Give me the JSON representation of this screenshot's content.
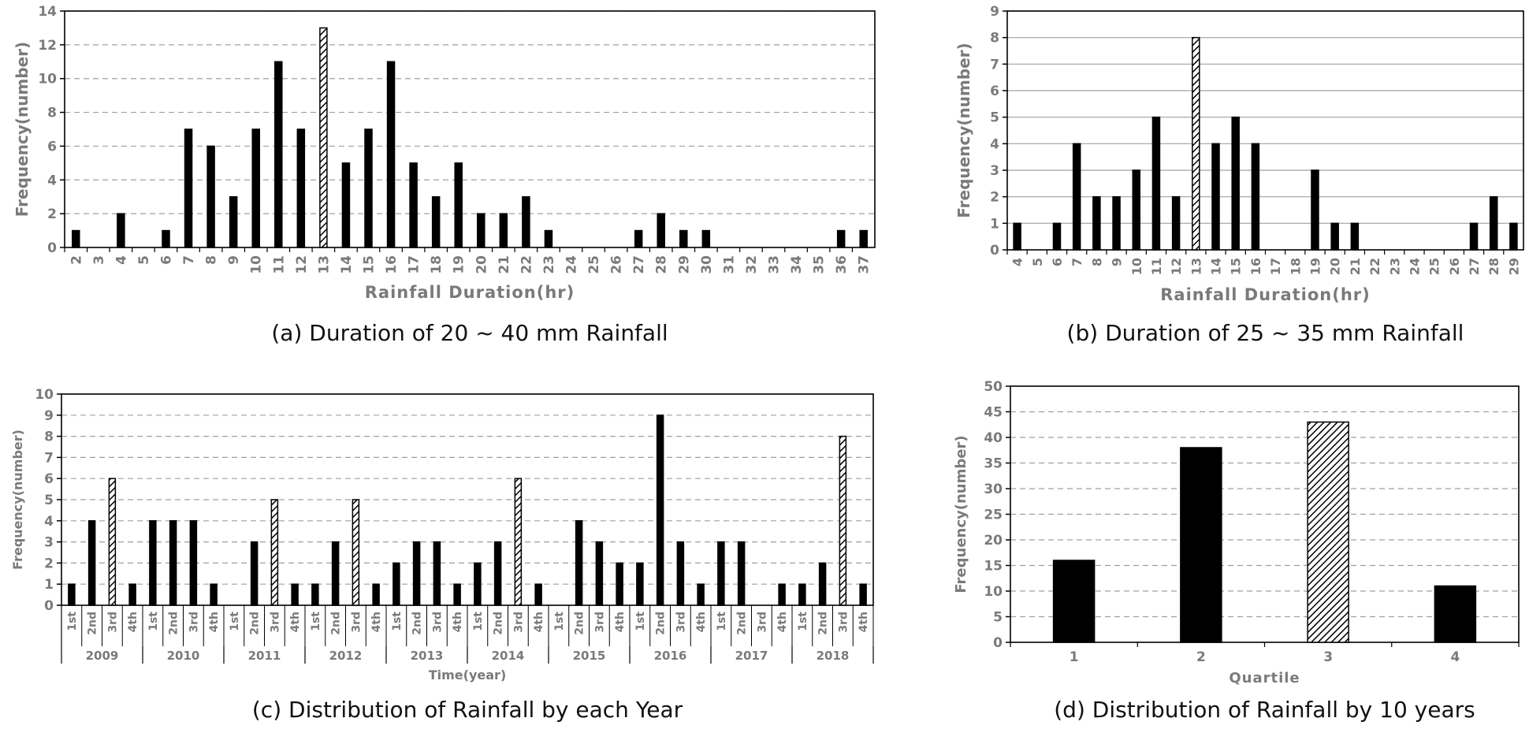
{
  "colors": {
    "bar": "#000000",
    "highlight_fill": "#ffffff",
    "grid": "#a0a0a0",
    "axis": "#000000",
    "text": "#7a7a7a"
  },
  "chart_data": [
    {
      "id": "a",
      "type": "bar",
      "caption": "(a) Duration of 20 ~ 40 mm Rainfall",
      "xlabel": "Rainfall Duration(hr)",
      "ylabel": "Frequency(number)",
      "ylim": [
        0,
        14
      ],
      "yticks": [
        0,
        2,
        4,
        6,
        8,
        10,
        12,
        14
      ],
      "grid": "dashed horizontal",
      "categories": [
        "2",
        "3",
        "4",
        "5",
        "6",
        "7",
        "8",
        "9",
        "10",
        "11",
        "12",
        "13",
        "14",
        "15",
        "16",
        "17",
        "18",
        "19",
        "20",
        "21",
        "22",
        "23",
        "24",
        "25",
        "26",
        "27",
        "28",
        "29",
        "30",
        "31",
        "32",
        "33",
        "34",
        "35",
        "36",
        "37"
      ],
      "values": [
        1,
        0,
        2,
        0,
        1,
        7,
        6,
        3,
        7,
        11,
        7,
        13,
        5,
        7,
        11,
        5,
        3,
        5,
        2,
        2,
        3,
        1,
        0,
        0,
        0,
        1,
        2,
        1,
        1,
        0,
        0,
        0,
        0,
        0,
        1,
        1
      ],
      "highlight": [
        "13"
      ]
    },
    {
      "id": "b",
      "type": "bar",
      "caption": "(b) Duration of 25 ~ 35 mm Rainfall",
      "xlabel": "Rainfall Duration(hr)",
      "ylabel": "Frequency(number)",
      "ylim": [
        0,
        9
      ],
      "yticks": [
        0,
        1,
        2,
        3,
        4,
        5,
        6,
        7,
        8,
        9
      ],
      "grid": "solid horizontal",
      "categories": [
        "4",
        "5",
        "6",
        "7",
        "8",
        "9",
        "10",
        "11",
        "12",
        "13",
        "14",
        "15",
        "16",
        "17",
        "18",
        "19",
        "20",
        "21",
        "22",
        "23",
        "24",
        "25",
        "26",
        "27",
        "28",
        "29"
      ],
      "values": [
        1,
        0,
        1,
        4,
        2,
        2,
        3,
        5,
        2,
        8,
        4,
        5,
        4,
        0,
        0,
        3,
        1,
        1,
        0,
        0,
        0,
        0,
        0,
        1,
        2,
        1
      ],
      "highlight": [
        "13"
      ]
    },
    {
      "id": "c",
      "type": "bar",
      "caption": "(c) Distribution of Rainfall by each Year",
      "xlabel": "Time(year)",
      "ylabel": "Frequency(number)",
      "ylim": [
        0,
        10
      ],
      "yticks": [
        0,
        1,
        2,
        3,
        4,
        5,
        6,
        7,
        8,
        9,
        10
      ],
      "grid": "dashed horizontal",
      "quarters": [
        "1st",
        "2nd",
        "3rd",
        "4th"
      ],
      "groups": [
        {
          "year": "2009",
          "values": [
            1,
            4,
            6,
            1
          ],
          "highlight": 2
        },
        {
          "year": "2010",
          "values": [
            4,
            4,
            4,
            1
          ],
          "highlight": -1
        },
        {
          "year": "2011",
          "values": [
            0,
            3,
            5,
            1
          ],
          "highlight": 2
        },
        {
          "year": "2012",
          "values": [
            1,
            3,
            5,
            1
          ],
          "highlight": 2
        },
        {
          "year": "2013",
          "values": [
            2,
            3,
            3,
            1
          ],
          "highlight": -1
        },
        {
          "year": "2014",
          "values": [
            2,
            3,
            6,
            1
          ],
          "highlight": 2
        },
        {
          "year": "2015",
          "values": [
            0,
            4,
            3,
            2
          ],
          "highlight": -1
        },
        {
          "year": "2016",
          "values": [
            2,
            9,
            3,
            1
          ],
          "highlight": -1
        },
        {
          "year": "2017",
          "values": [
            3,
            3,
            0,
            1
          ],
          "highlight": -1
        },
        {
          "year": "2018",
          "values": [
            1,
            2,
            8,
            1
          ],
          "highlight": 2
        }
      ]
    },
    {
      "id": "d",
      "type": "bar",
      "caption": "(d) Distribution of Rainfall by 10 years",
      "xlabel": "Quartile",
      "ylabel": "Frequency(number)",
      "ylim": [
        0,
        50
      ],
      "yticks": [
        0,
        5,
        10,
        15,
        20,
        25,
        30,
        35,
        40,
        45,
        50
      ],
      "grid": "dashed horizontal",
      "categories": [
        "1",
        "2",
        "3",
        "4"
      ],
      "values": [
        16,
        38,
        43,
        11
      ],
      "highlight": [
        "3"
      ]
    }
  ]
}
